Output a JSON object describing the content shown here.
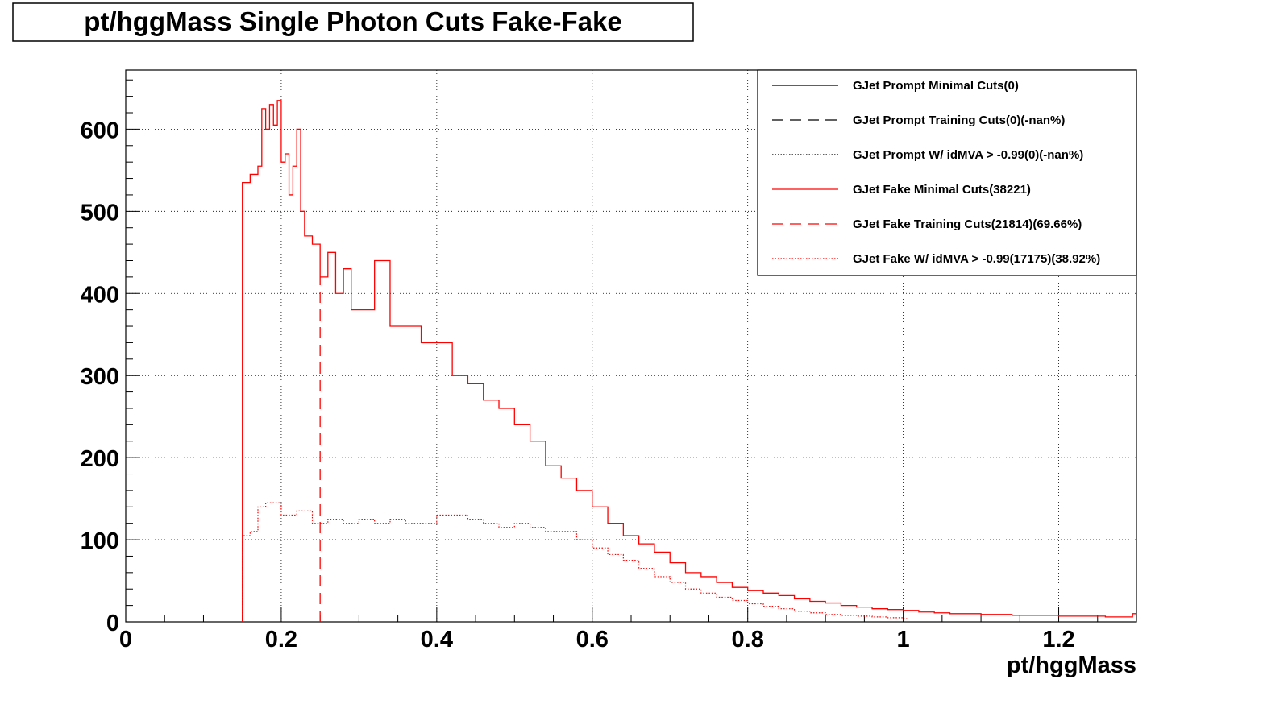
{
  "chart_data": {
    "type": "line",
    "title": "pt/hggMass Single Photon Cuts Fake-Fake",
    "xlabel": "pt/hggMass",
    "ylabel": "",
    "xlim": [
      0,
      1.3
    ],
    "ylim": [
      0,
      672
    ],
    "x_ticks": [
      0,
      0.2,
      0.4,
      0.6,
      0.8,
      1,
      1.2
    ],
    "x_tick_labels": [
      "0",
      "0.2",
      "0.4",
      "0.6",
      "0.8",
      "1",
      "1.2"
    ],
    "y_ticks": [
      0,
      100,
      200,
      300,
      400,
      500,
      600
    ],
    "y_tick_labels": [
      "0",
      "100",
      "200",
      "300",
      "400",
      "500",
      "600"
    ],
    "grid": true,
    "legend_position": "top-right",
    "series": [
      {
        "name": "GJet Prompt Minimal Cuts(0)",
        "color": "#000000",
        "style": "solid",
        "points": []
      },
      {
        "name": "GJet Prompt Training Cuts(0)(-nan%)",
        "color": "#000000",
        "style": "dashed",
        "points": []
      },
      {
        "name": "GJet Prompt W/ idMVA > -0.99(0)(-nan%)",
        "color": "#000000",
        "style": "dotted",
        "points": []
      },
      {
        "name": "GJet Fake Minimal Cuts(38221)",
        "color": "#ff0000",
        "style": "solid",
        "points": [
          [
            0.15,
            535
          ],
          [
            0.16,
            545
          ],
          [
            0.17,
            555
          ],
          [
            0.175,
            625
          ],
          [
            0.18,
            600
          ],
          [
            0.185,
            630
          ],
          [
            0.19,
            605
          ],
          [
            0.195,
            635
          ],
          [
            0.2,
            560
          ],
          [
            0.205,
            570
          ],
          [
            0.21,
            520
          ],
          [
            0.215,
            555
          ],
          [
            0.22,
            600
          ],
          [
            0.225,
            500
          ],
          [
            0.23,
            470
          ],
          [
            0.24,
            460
          ],
          [
            0.25,
            420
          ],
          [
            0.26,
            450
          ],
          [
            0.27,
            400
          ],
          [
            0.28,
            430
          ],
          [
            0.29,
            380
          ],
          [
            0.3,
            380
          ],
          [
            0.32,
            440
          ],
          [
            0.34,
            360
          ],
          [
            0.36,
            360
          ],
          [
            0.38,
            340
          ],
          [
            0.4,
            340
          ],
          [
            0.42,
            300
          ],
          [
            0.44,
            290
          ],
          [
            0.46,
            270
          ],
          [
            0.48,
            260
          ],
          [
            0.5,
            240
          ],
          [
            0.52,
            220
          ],
          [
            0.54,
            190
          ],
          [
            0.56,
            175
          ],
          [
            0.58,
            160
          ],
          [
            0.6,
            140
          ],
          [
            0.62,
            120
          ],
          [
            0.64,
            105
          ],
          [
            0.66,
            95
          ],
          [
            0.68,
            85
          ],
          [
            0.7,
            72
          ],
          [
            0.72,
            60
          ],
          [
            0.74,
            55
          ],
          [
            0.76,
            48
          ],
          [
            0.78,
            42
          ],
          [
            0.8,
            38
          ],
          [
            0.82,
            35
          ],
          [
            0.84,
            32
          ],
          [
            0.86,
            28
          ],
          [
            0.88,
            25
          ],
          [
            0.9,
            23
          ],
          [
            0.92,
            20
          ],
          [
            0.94,
            18
          ],
          [
            0.96,
            16
          ],
          [
            0.98,
            15
          ],
          [
            1.0,
            14
          ],
          [
            1.02,
            12
          ],
          [
            1.04,
            11
          ],
          [
            1.06,
            10
          ],
          [
            1.08,
            10
          ],
          [
            1.1,
            9
          ],
          [
            1.12,
            9
          ],
          [
            1.14,
            8
          ],
          [
            1.16,
            8
          ],
          [
            1.18,
            8
          ],
          [
            1.2,
            7
          ],
          [
            1.22,
            7
          ],
          [
            1.24,
            7
          ],
          [
            1.26,
            6
          ],
          [
            1.28,
            6
          ],
          [
            1.295,
            10
          ]
        ]
      },
      {
        "name": "GJet Fake Training Cuts(21814)(69.66%)",
        "color": "#ff0000",
        "style": "dashed",
        "points": [
          [
            0.25,
            420
          ]
        ]
      },
      {
        "name": "GJet Fake W/ idMVA > -0.99(17175)(38.92%)",
        "color": "#ff0000",
        "style": "dotted",
        "points": [
          [
            0.15,
            105
          ],
          [
            0.16,
            110
          ],
          [
            0.17,
            140
          ],
          [
            0.18,
            145
          ],
          [
            0.2,
            130
          ],
          [
            0.22,
            135
          ],
          [
            0.24,
            120
          ],
          [
            0.26,
            125
          ],
          [
            0.28,
            120
          ],
          [
            0.3,
            125
          ],
          [
            0.32,
            120
          ],
          [
            0.34,
            125
          ],
          [
            0.36,
            120
          ],
          [
            0.38,
            120
          ],
          [
            0.4,
            130
          ],
          [
            0.42,
            130
          ],
          [
            0.44,
            125
          ],
          [
            0.46,
            120
          ],
          [
            0.48,
            115
          ],
          [
            0.5,
            120
          ],
          [
            0.52,
            115
          ],
          [
            0.54,
            110
          ],
          [
            0.56,
            110
          ],
          [
            0.58,
            100
          ],
          [
            0.6,
            90
          ],
          [
            0.62,
            82
          ],
          [
            0.64,
            75
          ],
          [
            0.66,
            65
          ],
          [
            0.68,
            55
          ],
          [
            0.7,
            48
          ],
          [
            0.72,
            40
          ],
          [
            0.74,
            35
          ],
          [
            0.76,
            30
          ],
          [
            0.78,
            26
          ],
          [
            0.8,
            22
          ],
          [
            0.82,
            19
          ],
          [
            0.84,
            16
          ],
          [
            0.86,
            13
          ],
          [
            0.88,
            11
          ],
          [
            0.9,
            9
          ],
          [
            0.92,
            8
          ],
          [
            0.94,
            7
          ],
          [
            0.96,
            6
          ],
          [
            0.98,
            5
          ],
          [
            1.0,
            4
          ]
        ]
      }
    ]
  }
}
